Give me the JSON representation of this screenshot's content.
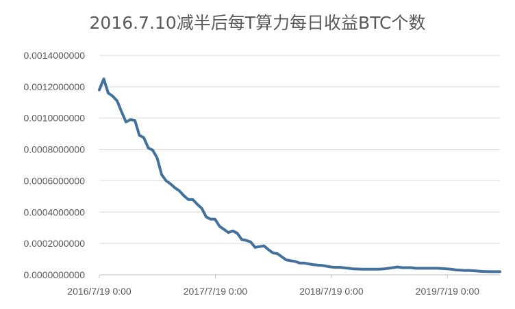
{
  "chart_data": {
    "type": "line",
    "title": "2016.7.10减半后每T算力每日收益BTC个数",
    "xlabel": "",
    "ylabel": "",
    "ylim": [
      0,
      0.0014
    ],
    "y_ticks": [
      "0.0000000000",
      "0.0002000000",
      "0.0004000000",
      "0.0006000000",
      "0.0008000000",
      "0.0010000000",
      "0.0012000000",
      "0.0014000000"
    ],
    "x_ticks": [
      {
        "label": "2016/7/19 0:00",
        "date": "2016-07-19"
      },
      {
        "label": "2017/7/19 0:00",
        "date": "2017-07-19"
      },
      {
        "label": "2018/7/19 0:00",
        "date": "2018-07-19"
      },
      {
        "label": "2019/7/19 0:00",
        "date": "2019-07-19"
      }
    ],
    "xlim": [
      "2016-07-19",
      "2019-12-31"
    ],
    "grid": true,
    "legend": "none",
    "line_color": "#41719C",
    "series": [
      {
        "x": [
          "2016-07-19",
          "2016-08-02",
          "2016-08-16",
          "2016-08-30",
          "2016-09-13",
          "2016-09-27",
          "2016-10-11",
          "2016-10-25",
          "2016-11-08",
          "2016-11-22",
          "2016-12-06",
          "2016-12-20",
          "2017-01-03",
          "2017-01-17",
          "2017-01-31",
          "2017-02-14",
          "2017-02-28",
          "2017-03-14",
          "2017-03-28",
          "2017-04-11",
          "2017-04-25",
          "2017-05-09",
          "2017-05-23",
          "2017-06-06",
          "2017-06-20",
          "2017-07-04",
          "2017-07-18",
          "2017-08-01",
          "2017-08-15",
          "2017-08-29",
          "2017-09-12",
          "2017-09-26",
          "2017-10-10",
          "2017-10-24",
          "2017-11-07",
          "2017-11-21",
          "2017-12-05",
          "2017-12-19",
          "2018-01-02",
          "2018-01-16",
          "2018-01-30",
          "2018-02-13",
          "2018-02-27",
          "2018-03-13",
          "2018-03-27",
          "2018-04-10",
          "2018-04-24",
          "2018-05-08",
          "2018-05-22",
          "2018-06-05",
          "2018-06-19",
          "2018-07-03",
          "2018-07-17",
          "2018-07-31",
          "2018-08-14",
          "2018-08-28",
          "2018-09-11",
          "2018-09-25",
          "2018-10-09",
          "2018-10-23",
          "2018-11-06",
          "2018-11-20",
          "2018-12-04",
          "2018-12-18",
          "2019-01-01",
          "2019-01-15",
          "2019-01-29",
          "2019-02-12",
          "2019-02-26",
          "2019-03-12",
          "2019-03-26",
          "2019-04-09",
          "2019-04-23",
          "2019-05-07",
          "2019-05-21",
          "2019-06-04",
          "2019-06-18",
          "2019-07-02",
          "2019-07-16",
          "2019-07-30",
          "2019-08-13",
          "2019-08-27",
          "2019-09-10",
          "2019-09-24",
          "2019-10-08",
          "2019-10-22",
          "2019-11-05",
          "2019-11-19",
          "2019-12-03",
          "2019-12-17",
          "2019-12-31"
        ],
        "y": [
          0.00118,
          0.00125,
          0.00116,
          0.00114,
          0.00111,
          0.00104,
          0.000975,
          0.00099,
          0.000985,
          0.00089,
          0.000875,
          0.00081,
          0.000795,
          0.000745,
          0.00064,
          0.0006,
          0.00058,
          0.000555,
          0.000535,
          0.000505,
          0.00048,
          0.00048,
          0.00045,
          0.000425,
          0.00037,
          0.000355,
          0.000355,
          0.00031,
          0.00029,
          0.00027,
          0.00028,
          0.000265,
          0.000225,
          0.00022,
          0.00021,
          0.000175,
          0.00018,
          0.000185,
          0.00016,
          0.00014,
          0.000135,
          0.000115,
          9.5e-05,
          9e-05,
          8.5e-05,
          7.5e-05,
          7.5e-05,
          7e-05,
          6.5e-05,
          6.2e-05,
          6e-05,
          5.5e-05,
          5e-05,
          4.8e-05,
          4.8e-05,
          4.5e-05,
          4.2e-05,
          3.8e-05,
          3.7e-05,
          3.6e-05,
          3.6e-05,
          3.6e-05,
          3.6e-05,
          3.6e-05,
          3.8e-05,
          4.2e-05,
          4.6e-05,
          5e-05,
          4.6e-05,
          4.6e-05,
          4.6e-05,
          4.2e-05,
          4.2e-05,
          4.2e-05,
          4.2e-05,
          4.2e-05,
          4.2e-05,
          4e-05,
          3.8e-05,
          3.6e-05,
          3.2e-05,
          3e-05,
          2.8e-05,
          2.8e-05,
          2.6e-05,
          2.4e-05,
          2.2e-05,
          2.1e-05,
          2e-05,
          2e-05,
          2e-05
        ]
      }
    ]
  }
}
